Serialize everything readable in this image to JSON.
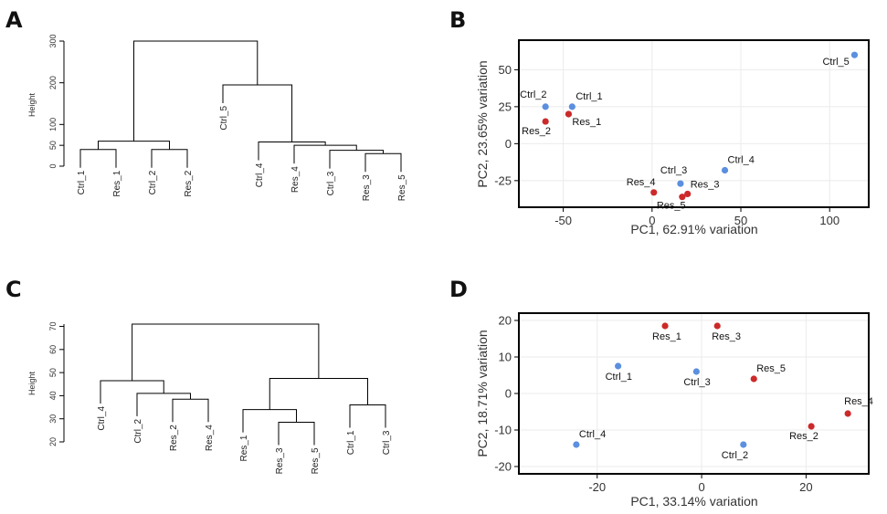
{
  "panels": [
    {
      "id": "A",
      "letter": "A"
    },
    {
      "id": "B",
      "letter": "B"
    },
    {
      "id": "C",
      "letter": "C"
    },
    {
      "id": "D",
      "letter": "D"
    }
  ],
  "colors": {
    "Ctrl": "#5b8fdf",
    "Res": "#cc2a2a"
  },
  "chart_data": [
    {
      "panel": "A",
      "type": "dendrogram",
      "ylabel": "Height",
      "yticks": [
        0,
        50,
        100,
        200,
        300
      ],
      "ylim": [
        0,
        300
      ],
      "leaves": [
        "Ctrl_1",
        "Res_1",
        "Ctrl_2",
        "Res_2",
        "Ctrl_5",
        "Ctrl_4",
        "Res_4",
        "Ctrl_3",
        "Res_3",
        "Res_5"
      ],
      "merges": [
        {
          "a": "Ctrl_1",
          "b": "Res_1",
          "h": 40
        },
        {
          "a": "Ctrl_2",
          "b": "Res_2",
          "h": 40
        },
        {
          "a": 0,
          "b": 1,
          "h": 60
        },
        {
          "a": "Res_3",
          "b": "Res_5",
          "h": 30
        },
        {
          "a": "Ctrl_3",
          "b": 3,
          "h": 38
        },
        {
          "a": "Res_4",
          "b": 4,
          "h": 50
        },
        {
          "a": "Ctrl_4",
          "b": 5,
          "h": 58
        },
        {
          "a": "Ctrl_5",
          "b": 6,
          "h": 195
        },
        {
          "a": 2,
          "b": 7,
          "h": 300
        }
      ]
    },
    {
      "panel": "B",
      "type": "scatter",
      "xlabel": "PC1, 62.91% variation",
      "ylabel": "PC2, 23.65% variation",
      "xlim": [
        -75,
        122
      ],
      "ylim": [
        -43,
        70
      ],
      "xticks": [
        -50,
        0,
        50,
        100
      ],
      "yticks": [
        -25,
        0,
        25,
        50
      ],
      "points": [
        {
          "label": "Ctrl_1",
          "group": "Ctrl",
          "x": -45,
          "y": 25,
          "lx": 4,
          "ly": -8
        },
        {
          "label": "Ctrl_2",
          "group": "Ctrl",
          "x": -60,
          "y": 25,
          "lx": -28,
          "ly": -10
        },
        {
          "label": "Res_1",
          "group": "Res",
          "x": -47,
          "y": 20,
          "lx": 4,
          "ly": 12
        },
        {
          "label": "Res_2",
          "group": "Res",
          "x": -60,
          "y": 15,
          "lx": -26,
          "ly": 14
        },
        {
          "label": "Ctrl_3",
          "group": "Ctrl",
          "x": 16,
          "y": -27,
          "lx": -22,
          "ly": -11
        },
        {
          "label": "Ctrl_4",
          "group": "Ctrl",
          "x": 41,
          "y": -18,
          "lx": 3,
          "ly": -8
        },
        {
          "label": "Ctrl_5",
          "group": "Ctrl",
          "x": 114,
          "y": 60,
          "lx": -35,
          "ly": 11
        },
        {
          "label": "Res_3",
          "group": "Res",
          "x": 20,
          "y": -34,
          "lx": 3,
          "ly": -7
        },
        {
          "label": "Res_4",
          "group": "Res",
          "x": 1,
          "y": -33,
          "lx": -30,
          "ly": -8
        },
        {
          "label": "Res_5",
          "group": "Res",
          "x": 17,
          "y": -36,
          "lx": -28,
          "ly": 13
        }
      ]
    },
    {
      "panel": "C",
      "type": "dendrogram",
      "ylabel": "Height",
      "yticks": [
        20,
        30,
        40,
        50,
        60,
        70
      ],
      "ylim": [
        20,
        72
      ],
      "leaves": [
        "Ctrl_4",
        "Ctrl_2",
        "Res_2",
        "Res_4",
        "Res_1",
        "Res_3",
        "Res_5",
        "Ctrl_1",
        "Ctrl_3"
      ],
      "merges": [
        {
          "a": "Res_2",
          "b": "Res_4",
          "h": 38.5
        },
        {
          "a": "Ctrl_2",
          "b": 0,
          "h": 41
        },
        {
          "a": "Ctrl_4",
          "b": 1,
          "h": 46.5
        },
        {
          "a": "Res_3",
          "b": "Res_5",
          "h": 28.5
        },
        {
          "a": "Res_1",
          "b": 3,
          "h": 34
        },
        {
          "a": "Ctrl_1",
          "b": "Ctrl_3",
          "h": 36
        },
        {
          "a": 4,
          "b": 5,
          "h": 47.5
        },
        {
          "a": 2,
          "b": 6,
          "h": 71
        }
      ]
    },
    {
      "panel": "D",
      "type": "scatter",
      "xlabel": "PC1, 33.14% variation",
      "ylabel": "PC2, 18.71% variation",
      "xlim": [
        -35,
        32
      ],
      "ylim": [
        -22,
        22
      ],
      "xticks": [
        -20,
        0,
        20
      ],
      "yticks": [
        -20,
        -10,
        0,
        10,
        20
      ],
      "points": [
        {
          "label": "Res_1",
          "group": "Res",
          "x": -7,
          "y": 18.5,
          "lx": -14,
          "ly": 15
        },
        {
          "label": "Res_3",
          "group": "Res",
          "x": 3,
          "y": 18.5,
          "lx": -6,
          "ly": 15
        },
        {
          "label": "Ctrl_1",
          "group": "Ctrl",
          "x": -16,
          "y": 7.5,
          "lx": -14,
          "ly": 15
        },
        {
          "label": "Ctrl_3",
          "group": "Ctrl",
          "x": -1,
          "y": 6,
          "lx": -14,
          "ly": 15
        },
        {
          "label": "Res_5",
          "group": "Res",
          "x": 10,
          "y": 4,
          "lx": 3,
          "ly": -8
        },
        {
          "label": "Res_4",
          "group": "Res",
          "x": 28,
          "y": -5.5,
          "lx": -4,
          "ly": -10
        },
        {
          "label": "Res_2",
          "group": "Res",
          "x": 21,
          "y": -9,
          "lx": -24,
          "ly": 14
        },
        {
          "label": "Ctrl_4",
          "group": "Ctrl",
          "x": -24,
          "y": -14,
          "lx": 3,
          "ly": -8
        },
        {
          "label": "Ctrl_2",
          "group": "Ctrl",
          "x": 8,
          "y": -14,
          "lx": -24,
          "ly": 15
        }
      ]
    }
  ]
}
